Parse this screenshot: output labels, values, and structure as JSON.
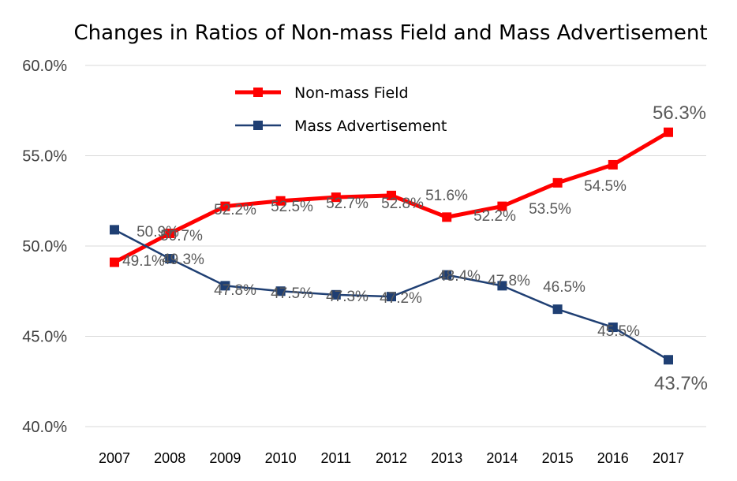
{
  "chart_data": {
    "type": "line",
    "title": "Changes in Ratios of Non-mass Field and Mass Advertisement",
    "xlabel": "",
    "ylabel": "",
    "categories": [
      "2007",
      "2008",
      "2009",
      "2010",
      "2011",
      "2012",
      "2013",
      "2014",
      "2015",
      "2016",
      "2017"
    ],
    "ylim": [
      40,
      60
    ],
    "yticks": [
      "40.0%",
      "45.0%",
      "50.0%",
      "55.0%",
      "60.0%"
    ],
    "grid": true,
    "legend_position": "top-center",
    "series": [
      {
        "name": "Non-mass Field",
        "color": "#ff0000",
        "values": [
          49.1,
          50.7,
          52.2,
          52.5,
          52.7,
          52.8,
          51.6,
          52.2,
          53.5,
          54.5,
          56.3
        ],
        "labels": [
          "49.1%",
          "50.7%",
          "52.2%",
          "52.5%",
          "52.7%",
          "52.8%",
          "51.6%",
          "52.2%",
          "53.5%",
          "54.5%",
          "56.3%"
        ]
      },
      {
        "name": "Mass Advertisement",
        "color": "#1f3f73",
        "values": [
          50.9,
          49.3,
          47.8,
          47.5,
          47.3,
          47.2,
          48.4,
          47.8,
          46.5,
          45.5,
          43.7
        ],
        "labels": [
          "50.9%",
          "49.3%",
          "47.8%",
          "47.5%",
          "47.3%",
          "47.2%",
          "48.4%",
          "47.8%",
          "46.5%",
          "45.5%",
          "43.7%"
        ]
      }
    ]
  }
}
